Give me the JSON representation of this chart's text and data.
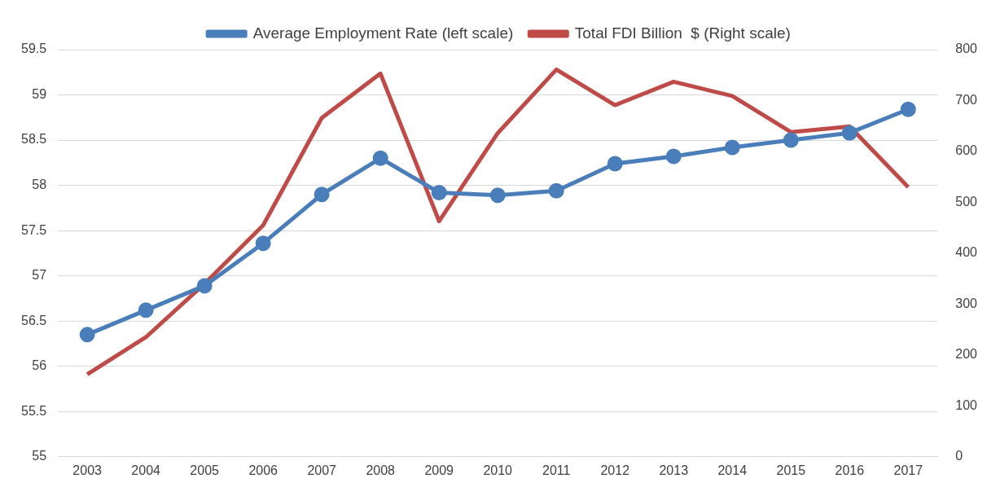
{
  "chart_data": {
    "type": "line",
    "categories": [
      "2003",
      "2004",
      "2005",
      "2006",
      "2007",
      "2008",
      "2009",
      "2010",
      "2011",
      "2012",
      "2013",
      "2014",
      "2015",
      "2016",
      "2017"
    ],
    "series": [
      {
        "name": "Average Employment Rate (left scale)",
        "color": "#4a7ebb",
        "marker": "circle",
        "values": [
          56.35,
          56.62,
          56.89,
          57.36,
          57.9,
          58.3,
          57.92,
          57.89,
          57.94,
          58.24,
          58.32,
          58.42,
          58.5,
          58.58,
          58.84
        ]
      },
      {
        "name": "Total FDI Billion  $ (Right scale)",
        "color": "#be4b48",
        "marker": "none",
        "axis": "y2",
        "values": [
          162,
          235,
          340,
          455,
          666,
          753,
          463,
          636,
          761,
          691,
          737,
          709,
          638,
          649,
          530
        ]
      }
    ],
    "ylim": [
      55,
      59.5
    ],
    "yticks": [
      55,
      55.5,
      56,
      56.5,
      57,
      57.5,
      58,
      58.5,
      59,
      59.5
    ],
    "y2lim": [
      0,
      800
    ],
    "y2ticks": [
      0,
      100,
      200,
      300,
      400,
      500,
      600,
      700,
      800
    ],
    "grid": "y",
    "legend": "top"
  }
}
